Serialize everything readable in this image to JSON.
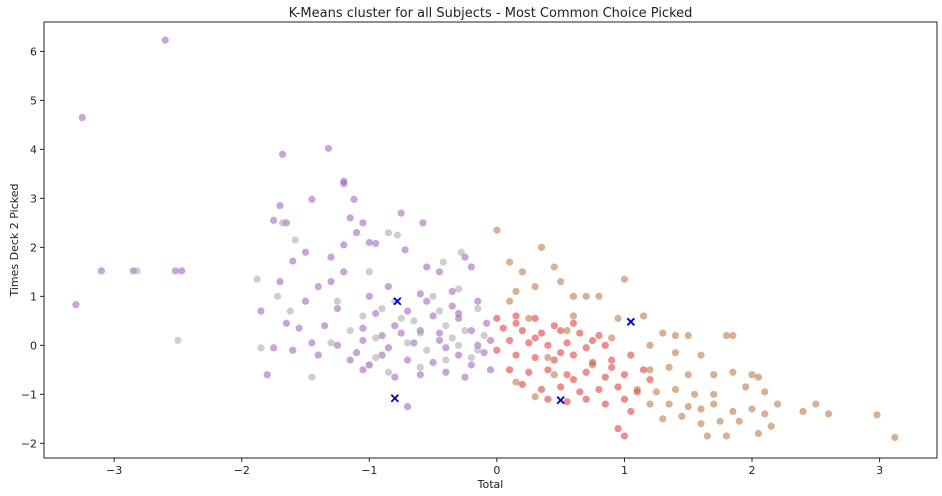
{
  "chart_data": {
    "type": "scatter",
    "title": "K-Means cluster for all Subjects - Most Common Choice Picked",
    "xlabel": "Total",
    "ylabel": "Times Deck 2 Picked",
    "xlim": [
      -3.55,
      3.45
    ],
    "ylim": [
      -2.3,
      6.6
    ],
    "xticks": [
      -3,
      -2,
      -1,
      0,
      1,
      2,
      3
    ],
    "yticks": [
      -2,
      -1,
      0,
      1,
      2,
      3,
      4,
      5,
      6
    ],
    "xtick_labels": [
      "−3",
      "−2",
      "−1",
      "0",
      "1",
      "2",
      "3"
    ],
    "ytick_labels": [
      "−2",
      "−1",
      "0",
      "1",
      "2",
      "3",
      "4",
      "5",
      "6"
    ],
    "grid": false,
    "legend": "none",
    "series": [
      {
        "color": "#9b59b6",
        "marker": "circle",
        "points": [
          [
            -2.6,
            6.23
          ],
          [
            -3.25,
            4.65
          ],
          [
            -3.1,
            1.52
          ],
          [
            -2.85,
            1.52
          ],
          [
            -2.52,
            1.52
          ],
          [
            -2.47,
            1.52
          ],
          [
            -3.3,
            0.83
          ],
          [
            -1.68,
            3.9
          ],
          [
            -1.32,
            4.02
          ],
          [
            -1.2,
            3.3
          ],
          [
            -1.2,
            3.35
          ],
          [
            -1.12,
            2.98
          ],
          [
            -1.45,
            2.98
          ],
          [
            -0.75,
            2.7
          ],
          [
            -1.75,
            2.55
          ],
          [
            -1.7,
            2.85
          ],
          [
            -1.65,
            2.5
          ],
          [
            -1.15,
            2.6
          ],
          [
            -1.05,
            2.5
          ],
          [
            -1.0,
            2.1
          ],
          [
            -0.58,
            2.5
          ],
          [
            -1.1,
            2.3
          ],
          [
            -1.2,
            2.05
          ],
          [
            -0.95,
            2.08
          ],
          [
            -1.5,
            1.9
          ],
          [
            -1.3,
            1.8
          ],
          [
            -1.6,
            1.72
          ],
          [
            -0.72,
            1.95
          ],
          [
            -0.55,
            1.6
          ],
          [
            -0.25,
            1.8
          ],
          [
            -0.2,
            1.6
          ],
          [
            -1.2,
            1.5
          ],
          [
            -0.45,
            1.5
          ],
          [
            -1.7,
            1.3
          ],
          [
            -1.4,
            1.2
          ],
          [
            -1.0,
            1.0
          ],
          [
            -0.6,
            1.05
          ],
          [
            -0.35,
            1.1
          ],
          [
            -0.15,
            0.9
          ],
          [
            -1.5,
            0.9
          ],
          [
            -1.85,
            0.7
          ],
          [
            -1.25,
            0.75
          ],
          [
            -0.95,
            0.65
          ],
          [
            -0.7,
            0.7
          ],
          [
            -0.5,
            0.6
          ],
          [
            -0.3,
            0.55
          ],
          [
            -0.08,
            0.45
          ],
          [
            -1.65,
            0.45
          ],
          [
            -1.55,
            0.35
          ],
          [
            -1.35,
            0.4
          ],
          [
            -1.05,
            0.35
          ],
          [
            -0.8,
            0.4
          ],
          [
            -0.6,
            0.3
          ],
          [
            -0.45,
            0.25
          ],
          [
            -0.2,
            0.3
          ],
          [
            -1.75,
            -0.05
          ],
          [
            -1.6,
            -0.1
          ],
          [
            -1.45,
            0.05
          ],
          [
            -1.25,
            0.0
          ],
          [
            -1.05,
            0.1
          ],
          [
            -0.85,
            -0.05
          ],
          [
            -0.65,
            0.05
          ],
          [
            -0.4,
            -0.05
          ],
          [
            -0.15,
            0.0
          ],
          [
            -0.05,
            0.1
          ],
          [
            -1.4,
            -0.2
          ],
          [
            -1.15,
            -0.3
          ],
          [
            -0.9,
            -0.2
          ],
          [
            -0.7,
            -0.3
          ],
          [
            -0.5,
            -0.35
          ],
          [
            -0.3,
            -0.2
          ],
          [
            -0.1,
            -0.15
          ],
          [
            -1.8,
            -0.6
          ],
          [
            -1.05,
            -0.5
          ],
          [
            -0.8,
            -0.65
          ],
          [
            -0.6,
            -0.6
          ],
          [
            -0.4,
            -0.55
          ],
          [
            -0.25,
            -0.65
          ],
          [
            -0.05,
            -0.5
          ],
          [
            -0.7,
            -1.25
          ],
          [
            -0.9,
            0.2
          ],
          [
            -1.1,
            -0.15
          ],
          [
            -0.35,
            0.8
          ],
          [
            -0.55,
            0.9
          ],
          [
            -0.85,
            1.2
          ],
          [
            -1.3,
            1.3
          ],
          [
            -0.2,
            -0.4
          ],
          [
            -0.45,
            0.1
          ],
          [
            -0.75,
            0.25
          ],
          [
            -1.0,
            -0.4
          ],
          [
            -0.3,
            0.65
          ]
        ]
      },
      {
        "color": "#a6a6a6",
        "marker": "circle",
        "points": [
          [
            -2.82,
            1.52
          ],
          [
            -2.5,
            0.1
          ],
          [
            -1.68,
            2.5
          ],
          [
            -1.58,
            2.15
          ],
          [
            -0.85,
            2.3
          ],
          [
            -0.78,
            2.25
          ],
          [
            -1.88,
            1.35
          ],
          [
            -1.72,
            1.0
          ],
          [
            -1.62,
            0.7
          ],
          [
            -1.85,
            -0.05
          ],
          [
            -1.45,
            -0.65
          ],
          [
            -0.28,
            1.9
          ],
          [
            -0.42,
            1.7
          ],
          [
            -1.0,
            1.5
          ],
          [
            -0.8,
            0.9
          ],
          [
            -0.9,
            0.75
          ],
          [
            -1.05,
            0.6
          ],
          [
            -0.65,
            0.5
          ],
          [
            -0.4,
            0.4
          ],
          [
            -0.25,
            0.3
          ],
          [
            -0.1,
            0.2
          ],
          [
            -1.15,
            0.3
          ],
          [
            -0.95,
            0.15
          ],
          [
            -0.7,
            0.05
          ],
          [
            -0.55,
            -0.1
          ],
          [
            -0.3,
            0.0
          ],
          [
            -0.15,
            -0.1
          ],
          [
            -1.0,
            -0.4
          ],
          [
            -0.85,
            -0.55
          ],
          [
            -0.6,
            -0.45
          ],
          [
            -0.4,
            -0.3
          ],
          [
            -0.2,
            -0.25
          ],
          [
            -1.25,
            0.9
          ],
          [
            -0.5,
            1.0
          ],
          [
            -0.3,
            1.15
          ],
          [
            -0.15,
            0.75
          ],
          [
            -0.45,
            0.7
          ],
          [
            -0.75,
            0.55
          ],
          [
            -1.3,
            0.05
          ],
          [
            -0.95,
            -0.25
          ],
          [
            -0.35,
            0.15
          ],
          [
            -0.6,
            0.25
          ]
        ]
      },
      {
        "color": "#e03030",
        "marker": "circle",
        "points": [
          [
            0.0,
            0.55
          ],
          [
            0.15,
            0.6
          ],
          [
            0.3,
            0.55
          ],
          [
            0.45,
            0.4
          ],
          [
            0.6,
            0.45
          ],
          [
            0.05,
            0.35
          ],
          [
            0.2,
            0.3
          ],
          [
            0.35,
            0.25
          ],
          [
            0.5,
            0.3
          ],
          [
            0.65,
            0.25
          ],
          [
            0.8,
            0.2
          ],
          [
            0.1,
            0.1
          ],
          [
            0.25,
            0.05
          ],
          [
            0.4,
            0.0
          ],
          [
            0.55,
            0.05
          ],
          [
            0.7,
            -0.05
          ],
          [
            0.85,
            0.0
          ],
          [
            0.0,
            -0.1
          ],
          [
            0.15,
            -0.2
          ],
          [
            0.3,
            -0.25
          ],
          [
            0.45,
            -0.3
          ],
          [
            0.6,
            -0.2
          ],
          [
            0.75,
            -0.35
          ],
          [
            0.9,
            -0.3
          ],
          [
            1.05,
            -0.2
          ],
          [
            0.1,
            -0.5
          ],
          [
            0.25,
            -0.55
          ],
          [
            0.4,
            -0.5
          ],
          [
            0.55,
            -0.6
          ],
          [
            0.7,
            -0.55
          ],
          [
            0.85,
            -0.65
          ],
          [
            1.0,
            -0.6
          ],
          [
            1.15,
            -0.5
          ],
          [
            0.2,
            -0.8
          ],
          [
            0.35,
            -0.9
          ],
          [
            0.5,
            -0.85
          ],
          [
            0.65,
            -0.95
          ],
          [
            0.8,
            -0.9
          ],
          [
            0.95,
            -0.85
          ],
          [
            1.1,
            -0.95
          ],
          [
            0.4,
            -1.1
          ],
          [
            0.55,
            -1.15
          ],
          [
            0.7,
            -1.1
          ],
          [
            0.85,
            -1.2
          ],
          [
            1.0,
            -1.1
          ],
          [
            1.05,
            -1.35
          ],
          [
            0.95,
            -1.7
          ],
          [
            1.0,
            -1.85
          ],
          [
            0.6,
            -0.7
          ],
          [
            0.3,
            0.15
          ],
          [
            0.75,
            0.1
          ],
          [
            1.2,
            -0.7
          ],
          [
            0.15,
            0.45
          ],
          [
            0.5,
            -0.15
          ],
          [
            0.9,
            -0.45
          ]
        ]
      },
      {
        "color": "#b8703a",
        "marker": "circle",
        "points": [
          [
            0.0,
            2.35
          ],
          [
            0.1,
            1.7
          ],
          [
            0.2,
            1.5
          ],
          [
            0.35,
            2.0
          ],
          [
            0.45,
            1.6
          ],
          [
            0.15,
            1.1
          ],
          [
            0.3,
            1.2
          ],
          [
            0.5,
            1.3
          ],
          [
            0.7,
            1.0
          ],
          [
            0.8,
            1.0
          ],
          [
            1.0,
            1.35
          ],
          [
            1.15,
            0.6
          ],
          [
            0.95,
            0.55
          ],
          [
            1.3,
            0.25
          ],
          [
            1.4,
            0.2
          ],
          [
            1.5,
            0.2
          ],
          [
            1.2,
            0.0
          ],
          [
            1.4,
            -0.15
          ],
          [
            1.6,
            -0.2
          ],
          [
            1.8,
            0.2
          ],
          [
            1.85,
            0.2
          ],
          [
            1.2,
            -0.5
          ],
          [
            1.35,
            -0.45
          ],
          [
            1.5,
            -0.6
          ],
          [
            1.7,
            -0.6
          ],
          [
            1.85,
            -0.55
          ],
          [
            2.0,
            -0.6
          ],
          [
            2.05,
            -0.65
          ],
          [
            1.1,
            -0.9
          ],
          [
            1.25,
            -0.95
          ],
          [
            1.4,
            -0.9
          ],
          [
            1.55,
            -1.0
          ],
          [
            1.7,
            -1.0
          ],
          [
            1.95,
            -0.85
          ],
          [
            2.1,
            -0.95
          ],
          [
            1.2,
            -1.2
          ],
          [
            1.35,
            -1.2
          ],
          [
            1.5,
            -1.25
          ],
          [
            1.6,
            -1.3
          ],
          [
            1.7,
            -1.2
          ],
          [
            1.85,
            -1.35
          ],
          [
            2.0,
            -1.3
          ],
          [
            2.1,
            -1.4
          ],
          [
            1.3,
            -1.5
          ],
          [
            1.45,
            -1.45
          ],
          [
            1.6,
            -1.6
          ],
          [
            1.75,
            -1.55
          ],
          [
            1.9,
            -1.55
          ],
          [
            2.05,
            -1.8
          ],
          [
            1.65,
            -1.85
          ],
          [
            1.8,
            -1.85
          ],
          [
            2.15,
            -1.65
          ],
          [
            2.4,
            -1.35
          ],
          [
            2.5,
            -1.2
          ],
          [
            2.6,
            -1.4
          ],
          [
            2.98,
            -1.42
          ],
          [
            3.12,
            -1.88
          ],
          [
            0.6,
            0.6
          ],
          [
            0.55,
            0.3
          ],
          [
            0.25,
            0.55
          ],
          [
            0.4,
            -0.25
          ],
          [
            0.15,
            -0.75
          ],
          [
            0.3,
            -1.05
          ],
          [
            0.75,
            -0.4
          ],
          [
            0.9,
            0.15
          ],
          [
            0.6,
            1.0
          ],
          [
            0.1,
            0.9
          ],
          [
            0.45,
            -0.6
          ],
          [
            2.2,
            -1.2
          ]
        ]
      },
      {
        "color": "#0000cc",
        "marker": "x",
        "points": [
          [
            -0.78,
            0.9
          ],
          [
            -0.8,
            -1.08
          ],
          [
            0.5,
            -1.12
          ],
          [
            1.05,
            0.48
          ]
        ]
      }
    ]
  }
}
